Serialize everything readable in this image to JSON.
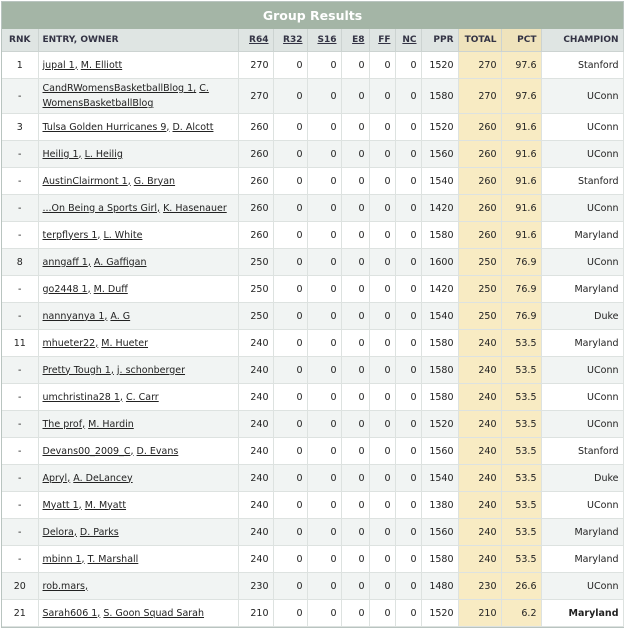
{
  "header": {
    "title": "Group Results"
  },
  "table": {
    "columns": {
      "rank": "RNK",
      "entry": "ENTRY, OWNER",
      "r64": "R64",
      "r32": "R32",
      "s16": "S16",
      "e8": "E8",
      "ff": "FF",
      "nc": "NC",
      "ppr": "PPR",
      "total": "TOTAL",
      "pct": "PCT",
      "champion": "CHAMPION"
    },
    "rows": [
      {
        "rank": 1,
        "entry": "jupal 1",
        "owner": "M. Elliott",
        "r64": 270,
        "r32": 0,
        "s16": 0,
        "e8": 0,
        "ff": 0,
        "nc": 0,
        "ppr": 1520,
        "total": 270,
        "pct": 97.6,
        "champion": "Stanford"
      },
      {
        "rank": "-",
        "entry": "CandRWomensBasketballBlog 1",
        "owner": "C. WomensBasketballBlog",
        "r64": 270,
        "r32": 0,
        "s16": 0,
        "e8": 0,
        "ff": 0,
        "nc": 0,
        "ppr": 1580,
        "total": 270,
        "pct": 97.6,
        "champion": "UConn"
      },
      {
        "rank": 3,
        "entry": "Tulsa Golden Hurricanes 9",
        "owner": "D. Alcott",
        "r64": 260,
        "r32": 0,
        "s16": 0,
        "e8": 0,
        "ff": 0,
        "nc": 0,
        "ppr": 1520,
        "total": 260,
        "pct": 91.6,
        "champion": "UConn"
      },
      {
        "rank": "-",
        "entry": "Heilig 1",
        "owner": "L. Heilig",
        "r64": 260,
        "r32": 0,
        "s16": 0,
        "e8": 0,
        "ff": 0,
        "nc": 0,
        "ppr": 1560,
        "total": 260,
        "pct": 91.6,
        "champion": "UConn"
      },
      {
        "rank": "-",
        "entry": "AustinClairmont 1",
        "owner": "G. Bryan",
        "r64": 260,
        "r32": 0,
        "s16": 0,
        "e8": 0,
        "ff": 0,
        "nc": 0,
        "ppr": 1540,
        "total": 260,
        "pct": 91.6,
        "champion": "Stanford"
      },
      {
        "rank": "-",
        "entry": "...On Being a Sports Girl",
        "owner": "K. Hasenauer",
        "r64": 260,
        "r32": 0,
        "s16": 0,
        "e8": 0,
        "ff": 0,
        "nc": 0,
        "ppr": 1420,
        "total": 260,
        "pct": 91.6,
        "champion": "UConn"
      },
      {
        "rank": "-",
        "entry": "terpflyers 1",
        "owner": "L. White",
        "r64": 260,
        "r32": 0,
        "s16": 0,
        "e8": 0,
        "ff": 0,
        "nc": 0,
        "ppr": 1580,
        "total": 260,
        "pct": 91.6,
        "champion": "Maryland"
      },
      {
        "rank": 8,
        "entry": "anngaff 1",
        "owner": "A. Gaffigan",
        "r64": 250,
        "r32": 0,
        "s16": 0,
        "e8": 0,
        "ff": 0,
        "nc": 0,
        "ppr": 1600,
        "total": 250,
        "pct": 76.9,
        "champion": "UConn"
      },
      {
        "rank": "-",
        "entry": "go2448 1",
        "owner": "M. Duff",
        "r64": 250,
        "r32": 0,
        "s16": 0,
        "e8": 0,
        "ff": 0,
        "nc": 0,
        "ppr": 1420,
        "total": 250,
        "pct": 76.9,
        "champion": "Maryland"
      },
      {
        "rank": "-",
        "entry": "nannyanya 1",
        "owner": "A. G",
        "r64": 250,
        "r32": 0,
        "s16": 0,
        "e8": 0,
        "ff": 0,
        "nc": 0,
        "ppr": 1540,
        "total": 250,
        "pct": 76.9,
        "champion": "Duke"
      },
      {
        "rank": 11,
        "entry": "mhueter22",
        "owner": "M. Hueter",
        "r64": 240,
        "r32": 0,
        "s16": 0,
        "e8": 0,
        "ff": 0,
        "nc": 0,
        "ppr": 1580,
        "total": 240,
        "pct": 53.5,
        "champion": "Maryland"
      },
      {
        "rank": "-",
        "entry": "Pretty Tough 1",
        "owner": "j. schonberger",
        "r64": 240,
        "r32": 0,
        "s16": 0,
        "e8": 0,
        "ff": 0,
        "nc": 0,
        "ppr": 1580,
        "total": 240,
        "pct": 53.5,
        "champion": "UConn"
      },
      {
        "rank": "-",
        "entry": "umchristina28 1",
        "owner": "C. Carr",
        "r64": 240,
        "r32": 0,
        "s16": 0,
        "e8": 0,
        "ff": 0,
        "nc": 0,
        "ppr": 1580,
        "total": 240,
        "pct": 53.5,
        "champion": "UConn"
      },
      {
        "rank": "-",
        "entry": "The prof",
        "owner": "M. Hardin",
        "r64": 240,
        "r32": 0,
        "s16": 0,
        "e8": 0,
        "ff": 0,
        "nc": 0,
        "ppr": 1520,
        "total": 240,
        "pct": 53.5,
        "champion": "UConn"
      },
      {
        "rank": "-",
        "entry": "Devans00_2009_C",
        "owner": "D. Evans",
        "r64": 240,
        "r32": 0,
        "s16": 0,
        "e8": 0,
        "ff": 0,
        "nc": 0,
        "ppr": 1560,
        "total": 240,
        "pct": 53.5,
        "champion": "Stanford"
      },
      {
        "rank": "-",
        "entry": "Apryl",
        "owner": "A. DeLancey",
        "r64": 240,
        "r32": 0,
        "s16": 0,
        "e8": 0,
        "ff": 0,
        "nc": 0,
        "ppr": 1540,
        "total": 240,
        "pct": 53.5,
        "champion": "Duke"
      },
      {
        "rank": "-",
        "entry": "Myatt 1",
        "owner": "M. Myatt",
        "r64": 240,
        "r32": 0,
        "s16": 0,
        "e8": 0,
        "ff": 0,
        "nc": 0,
        "ppr": 1380,
        "total": 240,
        "pct": 53.5,
        "champion": "UConn"
      },
      {
        "rank": "-",
        "entry": "Delora",
        "owner": "D. Parks",
        "r64": 240,
        "r32": 0,
        "s16": 0,
        "e8": 0,
        "ff": 0,
        "nc": 0,
        "ppr": 1560,
        "total": 240,
        "pct": 53.5,
        "champion": "Maryland"
      },
      {
        "rank": "-",
        "entry": "mbinn 1",
        "owner": "T. Marshall",
        "r64": 240,
        "r32": 0,
        "s16": 0,
        "e8": 0,
        "ff": 0,
        "nc": 0,
        "ppr": 1580,
        "total": 240,
        "pct": 53.5,
        "champion": "Maryland"
      },
      {
        "rank": 20,
        "entry": "rob.mars",
        "r64": 230,
        "r32": 0,
        "s16": 0,
        "e8": 0,
        "ff": 0,
        "nc": 0,
        "ppr": 1480,
        "total": 230,
        "pct": 26.6,
        "champion": "UConn"
      },
      {
        "rank": 21,
        "entry": "Sarah606 1",
        "owner": "S. Goon Squad Sarah",
        "r64": 210,
        "r32": 0,
        "s16": 0,
        "e8": 0,
        "ff": 0,
        "nc": 0,
        "ppr": 1520,
        "total": 210,
        "pct": 6.2,
        "champion": "Maryland"
      }
    ]
  }
}
